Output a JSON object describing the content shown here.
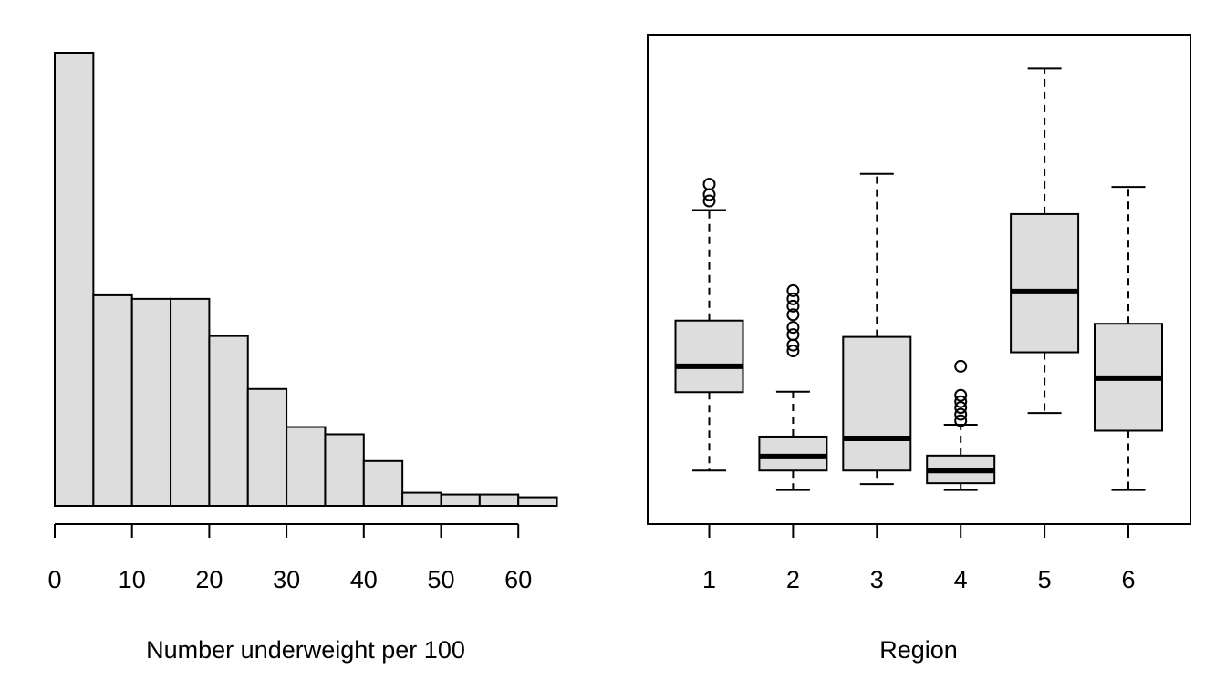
{
  "chart_data": [
    {
      "type": "histogram",
      "title": "",
      "xlabel": "Number underweight per 100",
      "ylabel": "",
      "x_ticks": [
        "0",
        "10",
        "20",
        "30",
        "40",
        "50",
        "60"
      ],
      "bin_edges": [
        0,
        5,
        10,
        15,
        20,
        25,
        30,
        35,
        40,
        45,
        50,
        55,
        60,
        65
      ],
      "values": [
        1.0,
        0.465,
        0.457,
        0.457,
        0.375,
        0.258,
        0.174,
        0.158,
        0.099,
        0.029,
        0.025,
        0.025,
        0.019
      ],
      "value_scale": "relative bar height (no y-axis shown)",
      "xlim": [
        0,
        65
      ],
      "bar_fill": "#dddddd",
      "bar_stroke": "#000000"
    },
    {
      "type": "boxplot",
      "title": "",
      "xlabel": "Region",
      "ylabel": "",
      "categories": [
        "1",
        "2",
        "3",
        "4",
        "5",
        "6"
      ],
      "value_scale": "relative (no y-axis shown)",
      "ylim": [
        0,
        1
      ],
      "boxes": [
        {
          "category": "1",
          "whisker_low": 0.078,
          "q1": 0.251,
          "median": 0.308,
          "q3": 0.409,
          "whisker_high": 0.653,
          "outliers": [
            0.673,
            0.687,
            0.71
          ]
        },
        {
          "category": "2",
          "whisker_low": 0.035,
          "q1": 0.078,
          "median": 0.109,
          "q3": 0.153,
          "whisker_high": 0.252,
          "outliers": [
            0.342,
            0.355,
            0.378,
            0.394,
            0.422,
            0.441,
            0.457,
            0.475
          ]
        },
        {
          "category": "3",
          "whisker_low": 0.048,
          "q1": 0.078,
          "median": 0.149,
          "q3": 0.373,
          "whisker_high": 0.733,
          "outliers": []
        },
        {
          "category": "4",
          "whisker_low": 0.035,
          "q1": 0.05,
          "median": 0.078,
          "q3": 0.111,
          "whisker_high": 0.179,
          "outliers": [
            0.188,
            0.202,
            0.217,
            0.23,
            0.244,
            0.308
          ]
        },
        {
          "category": "5",
          "whisker_low": 0.205,
          "q1": 0.339,
          "median": 0.473,
          "q3": 0.644,
          "whisker_high": 0.965,
          "outliers": []
        },
        {
          "category": "6",
          "whisker_low": 0.035,
          "q1": 0.166,
          "median": 0.282,
          "q3": 0.402,
          "whisker_high": 0.704,
          "outliers": []
        }
      ],
      "box_fill": "#dddddd",
      "box_stroke": "#000000"
    }
  ]
}
